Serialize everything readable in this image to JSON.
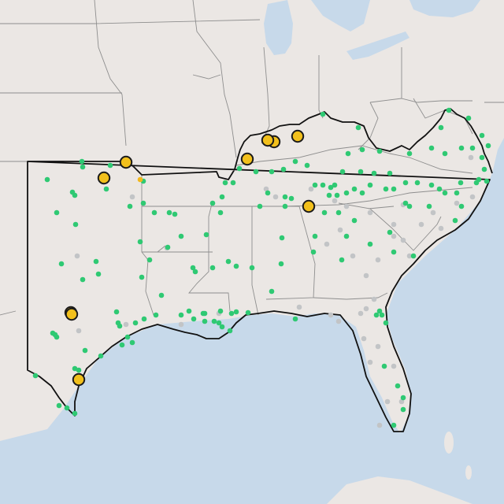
{
  "map": {
    "colors": {
      "land": "#ebe7e4",
      "water": "#c7d9ea",
      "state_border": "#8e8e8e",
      "region_outline": "#111111",
      "large_marker_fill": "#f2c01c",
      "large_marker_stroke": "#1a1a1a",
      "small_green": "#2fc973",
      "small_gray": "#c2c4c6",
      "small_orange": "#f2b81c"
    },
    "marker_types": [
      "large-yellow-site",
      "green-site",
      "gray-site",
      "orange-site"
    ]
  }
}
